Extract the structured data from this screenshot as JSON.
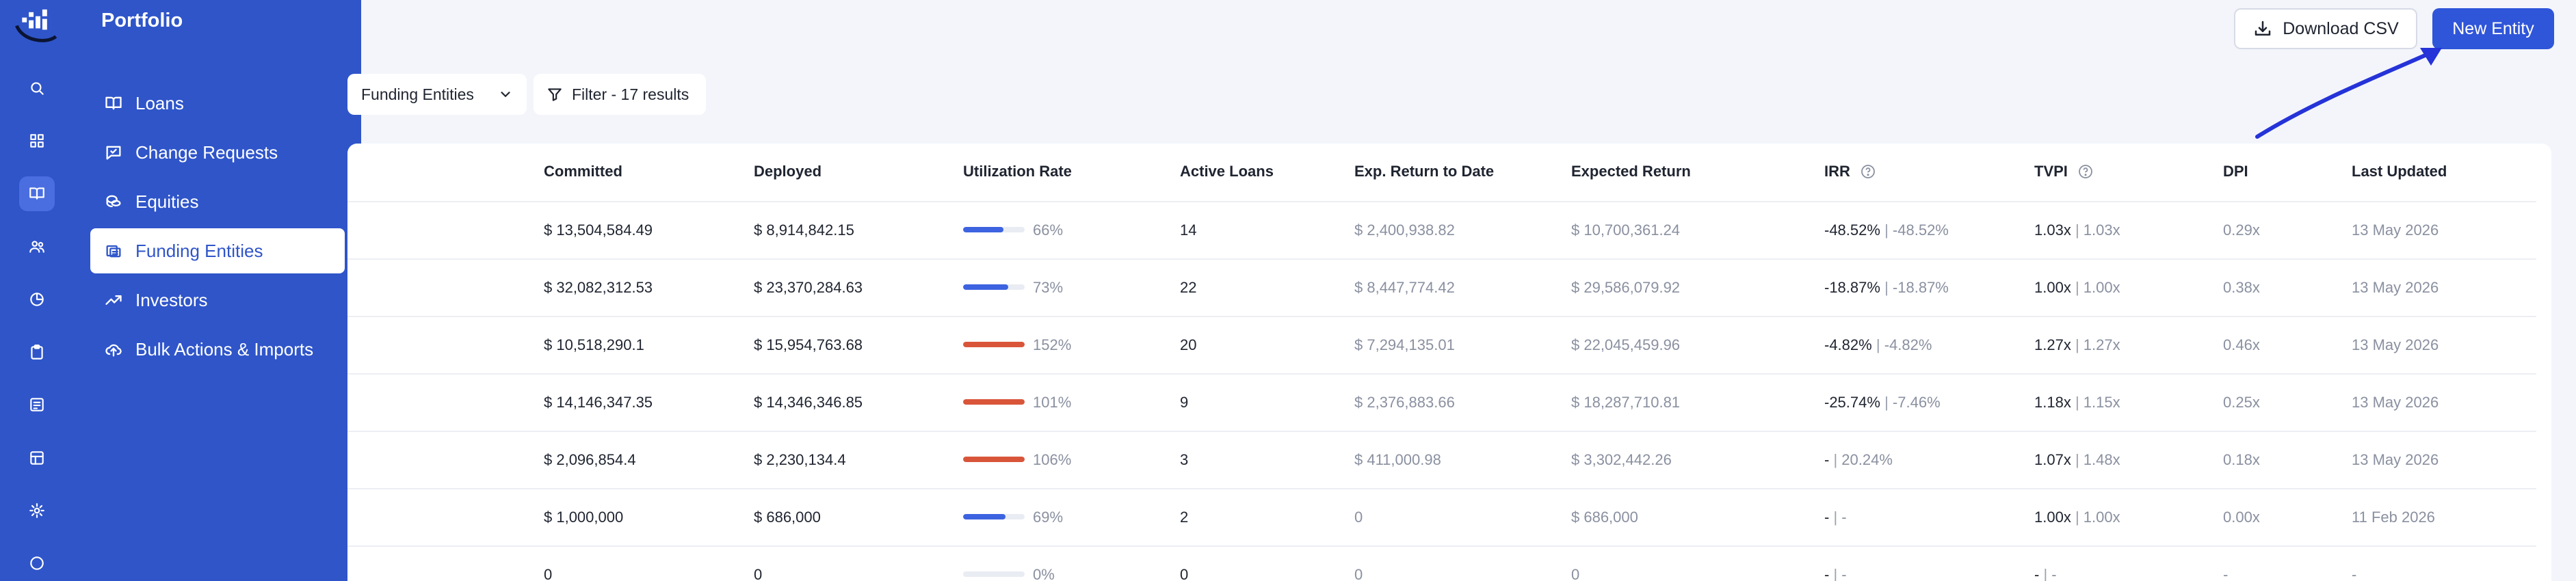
{
  "nav": {
    "title": "Portfolio",
    "items": [
      {
        "label": "Loans",
        "icon": "book-icon"
      },
      {
        "label": "Change Requests",
        "icon": "chat-check-icon"
      },
      {
        "label": "Equities",
        "icon": "coins-icon"
      },
      {
        "label": "Funding Entities",
        "icon": "stack-icon",
        "active": true
      },
      {
        "label": "Investors",
        "icon": "trend-up-icon"
      },
      {
        "label": "Bulk Actions & Imports",
        "icon": "cloud-upload-icon"
      }
    ]
  },
  "toolbar": {
    "download_label": "Download CSV",
    "new_label": "New Entity",
    "select_value": "Funding Entities",
    "filter_label": "Filter - 17 results"
  },
  "table": {
    "columns": [
      "Committed",
      "Deployed",
      "Utilization Rate",
      "Active Loans",
      "Exp. Return to Date",
      "Expected Return",
      "IRR",
      "TVPI",
      "DPI",
      "Last Updated"
    ],
    "rows": [
      {
        "committed": "$ 13,504,584.49",
        "deployed": "$ 8,914,842.15",
        "util": 0.66,
        "util_label": "66%",
        "util_color": "#3d63e0",
        "loans": "14",
        "exp_to_date": "$ 2,400,938.82",
        "expected": "$ 10,700,361.24",
        "irr_a": "-48.52%",
        "irr_b": "-48.52%",
        "tvpi_a": "1.03x",
        "tvpi_b": "1.03x",
        "dpi": "0.29x",
        "updated": "13 May 2026"
      },
      {
        "committed": "$ 32,082,312.53",
        "deployed": "$ 23,370,284.63",
        "util": 0.73,
        "util_label": "73%",
        "util_color": "#3d63e0",
        "loans": "22",
        "exp_to_date": "$ 8,447,774.42",
        "expected": "$ 29,586,079.92",
        "irr_a": "-18.87%",
        "irr_b": "-18.87%",
        "tvpi_a": "1.00x",
        "tvpi_b": "1.00x",
        "dpi": "0.38x",
        "updated": "13 May 2026"
      },
      {
        "committed": "$ 10,518,290.1",
        "deployed": "$ 15,954,763.68",
        "util": 1.52,
        "util_label": "152%",
        "util_color": "#d9553a",
        "loans": "20",
        "exp_to_date": "$ 7,294,135.01",
        "expected": "$ 22,045,459.96",
        "irr_a": "-4.82%",
        "irr_b": "-4.82%",
        "tvpi_a": "1.27x",
        "tvpi_b": "1.27x",
        "dpi": "0.46x",
        "updated": "13 May 2026"
      },
      {
        "committed": "$ 14,146,347.35",
        "deployed": "$ 14,346,346.85",
        "util": 1.01,
        "util_label": "101%",
        "util_color": "#d9553a",
        "loans": "9",
        "exp_to_date": "$ 2,376,883.66",
        "expected": "$ 18,287,710.81",
        "irr_a": "-25.74%",
        "irr_b": "-7.46%",
        "tvpi_a": "1.18x",
        "tvpi_b": "1.15x",
        "dpi": "0.25x",
        "updated": "13 May 2026"
      },
      {
        "committed": "$ 2,096,854.4",
        "deployed": "$ 2,230,134.4",
        "util": 1.06,
        "util_label": "106%",
        "util_color": "#d9553a",
        "loans": "3",
        "exp_to_date": "$ 411,000.98",
        "expected": "$ 3,302,442.26",
        "irr_a": "-",
        "irr_b": "20.24%",
        "tvpi_a": "1.07x",
        "tvpi_b": "1.48x",
        "dpi": "0.18x",
        "updated": "13 May 2026"
      },
      {
        "committed": "$ 1,000,000",
        "deployed": "$ 686,000",
        "util": 0.69,
        "util_label": "69%",
        "util_color": "#3d63e0",
        "loans": "2",
        "exp_to_date": "0",
        "expected": "$ 686,000",
        "irr_a": "-",
        "irr_b": "-",
        "tvpi_a": "1.00x",
        "tvpi_b": "1.00x",
        "dpi": "0.00x",
        "updated": "11 Feb 2026"
      },
      {
        "committed": "0",
        "deployed": "0",
        "util": 0,
        "util_label": "0%",
        "util_color": "#3d63e0",
        "loans": "0",
        "exp_to_date": "0",
        "expected": "0",
        "irr_a": "-",
        "irr_b": "-",
        "tvpi_a": "-",
        "tvpi_b": "-",
        "dpi": "-",
        "updated": "-"
      }
    ]
  }
}
